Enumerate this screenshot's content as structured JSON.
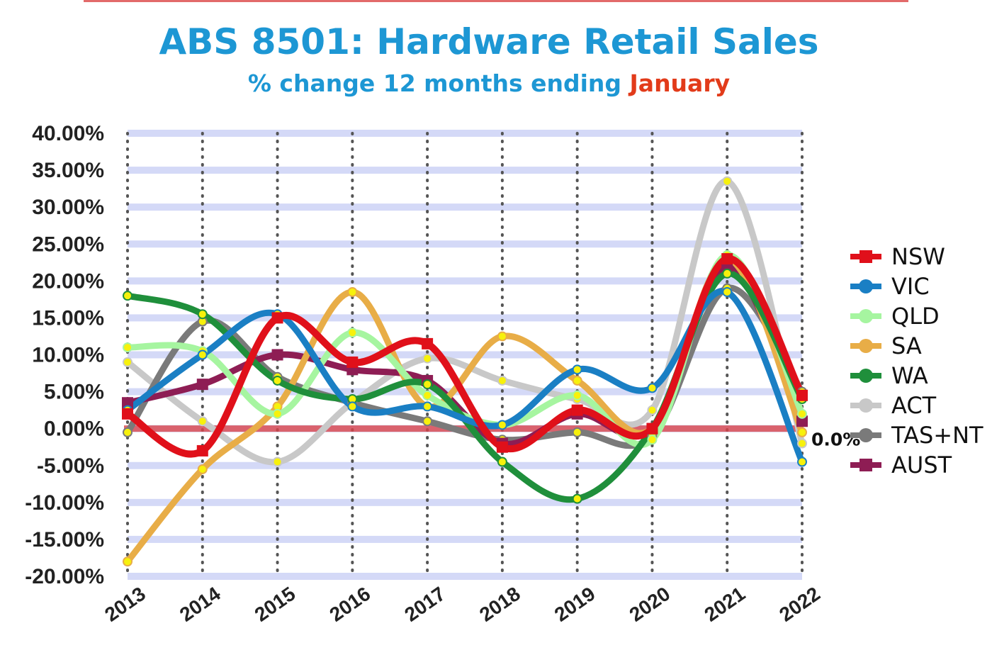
{
  "colors": {
    "title": "#1d97d4",
    "highlight": "#e23b1a",
    "band": "#d4d9f7",
    "zero_line": "#d9444a"
  },
  "chart_data": {
    "type": "line",
    "title": "ABS 8501: Hardware Retail Sales",
    "subtitle_prefix": "% change 12 months ending ",
    "subtitle_highlight": "January",
    "x": [
      "2013",
      "2014",
      "2015",
      "2016",
      "2017",
      "2018",
      "2019",
      "2020",
      "2021",
      "2022"
    ],
    "ylim": [
      -20,
      40
    ],
    "yticks": [
      "40.00%",
      "35.00%",
      "30.00%",
      "25.00%",
      "20.00%",
      "15.00%",
      "10.00%",
      "5.00%",
      "0.00%",
      "-5.00%",
      "-10.00%",
      "-15.00%",
      "-20.00%"
    ],
    "grid": "horizontal bands and dotted vertical lines",
    "legend": "right",
    "zero_line_label": "0.0%",
    "series": [
      {
        "name": "ACT",
        "color": "#c8c8c8",
        "marker": "circle",
        "values": [
          9,
          1,
          -4.5,
          3.5,
          9.5,
          6.5,
          4,
          2.5,
          33.5,
          -2
        ]
      },
      {
        "name": "TAS+NT",
        "color": "#7a7a7a",
        "marker": "circle",
        "values": [
          -0.5,
          14.5,
          7,
          3.5,
          1,
          -1.5,
          -0.5,
          -1,
          19,
          5
        ]
      },
      {
        "name": "AUST",
        "color": "#8e1d54",
        "marker": "square",
        "values": [
          3.5,
          6,
          10,
          8,
          6.5,
          -2,
          2,
          0,
          22,
          1
        ]
      },
      {
        "name": "SA",
        "color": "#e8ad47",
        "marker": "circle",
        "values": [
          -18,
          -5.5,
          3,
          18.5,
          3,
          12.5,
          6.5,
          0,
          23,
          -0.5
        ]
      },
      {
        "name": "QLD",
        "color": "#a6f5a0",
        "marker": "circle",
        "values": [
          11,
          10.5,
          2,
          13,
          4.5,
          0.5,
          4.5,
          -1.5,
          23.5,
          2
        ]
      },
      {
        "name": "WA",
        "color": "#1f8f3b",
        "marker": "circle",
        "values": [
          18,
          15.5,
          6.5,
          4,
          6,
          -4.5,
          -9.5,
          0,
          21,
          4
        ]
      },
      {
        "name": "VIC",
        "color": "#1a7fc4",
        "marker": "circle",
        "values": [
          2.5,
          10,
          15.5,
          3,
          3,
          0.5,
          8,
          5.5,
          18.5,
          -4.5
        ]
      },
      {
        "name": "NSW",
        "color": "#e0101a",
        "marker": "square",
        "values": [
          2,
          -3,
          15,
          9,
          11.5,
          -2.5,
          2.5,
          0,
          23,
          4.5
        ]
      }
    ],
    "legend_order": [
      "NSW",
      "VIC",
      "QLD",
      "SA",
      "WA",
      "ACT",
      "TAS+NT",
      "AUST"
    ]
  }
}
